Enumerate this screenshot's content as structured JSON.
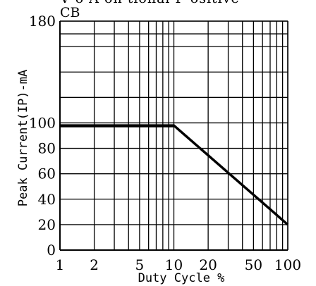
{
  "chart_data": {
    "type": "line",
    "top_cut_text": "V o  A  on tional  F  ositive",
    "title": "CB",
    "xlabel": "Duty Cycle %",
    "ylabel": "Peak Current(IP)-mA",
    "x_scale": "log",
    "xlim": [
      1,
      100
    ],
    "ylim": [
      0,
      180
    ],
    "grid": true,
    "x_tick_labels": [
      {
        "value": 1,
        "label": "1"
      },
      {
        "value": 2,
        "label": "2"
      },
      {
        "value": 5,
        "label": "5"
      },
      {
        "value": 10,
        "label": "10"
      },
      {
        "value": 20,
        "label": "20"
      },
      {
        "value": 50,
        "label": "50"
      },
      {
        "value": 100,
        "label": "100"
      }
    ],
    "y_tick_labels": [
      {
        "value": 0,
        "label": "0"
      },
      {
        "value": 20,
        "label": "20"
      },
      {
        "value": 40,
        "label": "40"
      },
      {
        "value": 60,
        "label": "60"
      },
      {
        "value": 80,
        "label": "80"
      },
      {
        "value": 100,
        "label": "100"
      },
      {
        "value": 180,
        "label": "180"
      }
    ],
    "series": [
      {
        "x": [
          1,
          10,
          100
        ],
        "y": [
          98,
          98,
          20
        ]
      }
    ]
  }
}
